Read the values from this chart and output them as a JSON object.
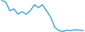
{
  "x": [
    0,
    1,
    2,
    3,
    4,
    5,
    6,
    7,
    8,
    9,
    10,
    11,
    12,
    13,
    14,
    15,
    16,
    17,
    18,
    19,
    20
  ],
  "y": [
    85,
    82,
    60,
    65,
    52,
    58,
    52,
    60,
    75,
    68,
    75,
    60,
    45,
    20,
    12,
    10,
    13,
    12,
    14,
    13,
    12
  ],
  "line_color": "#3a9fd4",
  "linewidth": 1.1,
  "background_color": "#ffffff"
}
